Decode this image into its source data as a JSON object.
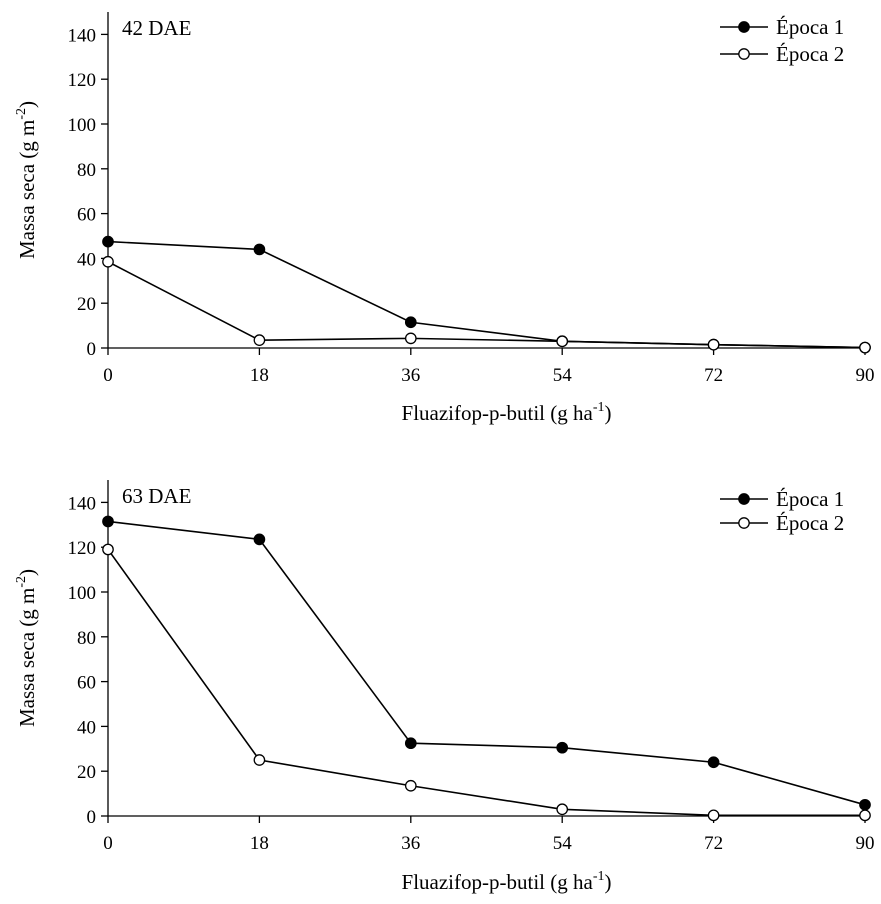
{
  "chart_data": [
    {
      "type": "line",
      "annotation": "42 DAE",
      "xlabel": "Fluazifop-p-butil (g ha",
      "xlabel_sup": "-1",
      "xlabel_end": ")",
      "ylabel": "Massa seca (g m",
      "ylabel_sup": "-2",
      "ylabel_end": ")",
      "x": [
        0,
        18,
        36,
        54,
        72,
        90
      ],
      "x_ticks": [
        "0",
        "18",
        "36",
        "54",
        "72",
        "90"
      ],
      "xlim": [
        0,
        90
      ],
      "ylim": [
        0,
        150
      ],
      "y_ticks": [
        "0",
        "20",
        "40",
        "60",
        "80",
        "100",
        "120",
        "140"
      ],
      "legend_position": "top-right",
      "grid": false,
      "series": [
        {
          "name": "Época 1",
          "marker": "filled-circle",
          "values": [
            47.5,
            44,
            11.5,
            3,
            1.5,
            0.2
          ]
        },
        {
          "name": "Época 2",
          "marker": "open-circle",
          "values": [
            38.5,
            3.5,
            4.3,
            3,
            1.5,
            0.2
          ]
        }
      ]
    },
    {
      "type": "line",
      "annotation": "63 DAE",
      "xlabel": "Fluazifop-p-butil (g ha",
      "xlabel_sup": "-1",
      "xlabel_end": ")",
      "ylabel": "Massa seca (g m",
      "ylabel_sup": "-2",
      "ylabel_end": ")",
      "x": [
        0,
        18,
        36,
        54,
        72,
        90
      ],
      "x_ticks": [
        "0",
        "18",
        "36",
        "54",
        "72",
        "90"
      ],
      "xlim": [
        0,
        90
      ],
      "ylim": [
        0,
        150
      ],
      "y_ticks": [
        "0",
        "20",
        "40",
        "60",
        "80",
        "100",
        "120",
        "140"
      ],
      "legend_position": "top-right",
      "grid": false,
      "series": [
        {
          "name": "Época 1",
          "marker": "filled-circle",
          "values": [
            131.5,
            123.5,
            32.5,
            30.5,
            24,
            5
          ]
        },
        {
          "name": "Época 2",
          "marker": "open-circle",
          "values": [
            119,
            25,
            13.5,
            3,
            0.3,
            0.3
          ]
        }
      ]
    }
  ]
}
